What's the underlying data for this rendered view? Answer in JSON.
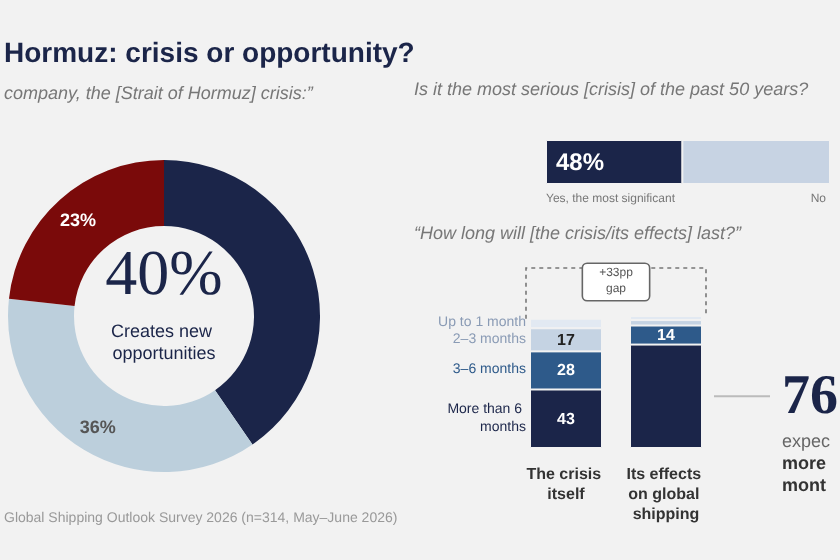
{
  "chart_data": [
    {
      "type": "donut",
      "title": "Hormuz: crisis or opportunity?",
      "subtitle": "company, the [Strait of Hormuz] crisis:”",
      "categories": [
        "Creates new opportunities",
        null,
        null
      ],
      "values": [
        40,
        36,
        23
      ],
      "colors": [
        "#1b2549",
        "#bccfdc",
        "#7a0a0a"
      ],
      "value_labels": [
        "40%",
        "36%",
        "23%"
      ],
      "annotations": [
        "Global Shipping Outlook Survey 2026 (n=314, May–June 2026)"
      ]
    },
    {
      "type": "bar",
      "orientation": "horizontal",
      "stacked": true,
      "title": "Is it the most serious [crisis] of the past 50 years?",
      "categories": [
        null
      ],
      "series": [
        {
          "name": "Yes, the most significant",
          "color": "#1b2549",
          "values": [
            48
          ],
          "value_labels": [
            "48%"
          ]
        },
        {
          "name": "No",
          "color": "#c7d3e3",
          "values": [
            52
          ],
          "value_labels": [
            null
          ]
        }
      ]
    },
    {
      "type": "bar",
      "stacked": true,
      "title": "“How long will [the crisis/its effects] last?”",
      "categories": [
        "The crisis itself",
        "Its effects on global shipping"
      ],
      "series": [
        {
          "name": "More than 6 months",
          "color": "#1b2549",
          "values": [
            43,
            76
          ],
          "value_labels": [
            "43",
            null
          ]
        },
        {
          "name": "3–6 months",
          "color": "#2e5a8a",
          "values": [
            28,
            14
          ],
          "value_labels": [
            "28",
            "14"
          ]
        },
        {
          "name": "2–3 months",
          "color": "#c5d3e3",
          "values": [
            17,
            4
          ],
          "value_labels": [
            "17",
            null
          ]
        },
        {
          "name": "Up to 1 month",
          "color": "#e2e9f2",
          "values": [
            7,
            3
          ],
          "value_labels": [
            null,
            null
          ]
        }
      ],
      "annotations": [
        "+33pp gap",
        "76",
        "expec",
        "more",
        "mont"
      ]
    }
  ]
}
